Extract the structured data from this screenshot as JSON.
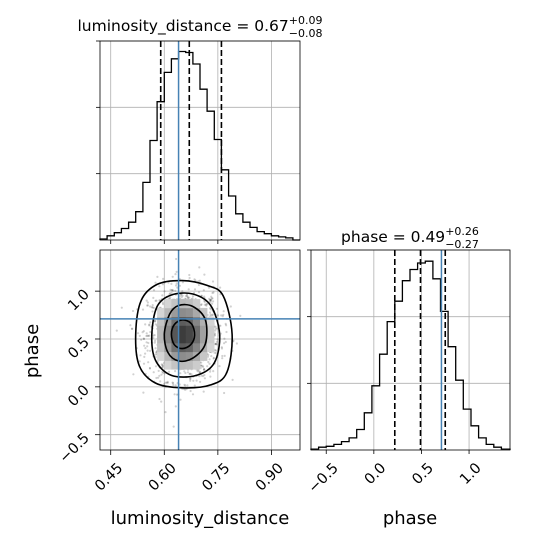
{
  "chart_data": {
    "type": "corner",
    "parameters": [
      {
        "name": "luminosity_distance",
        "median": 0.67,
        "q_lo": 0.59,
        "q_hi": 0.76,
        "title_main": "luminosity_distance = 0.67",
        "title_sup": "+0.09",
        "title_sub": "−0.08",
        "truth": 0.64,
        "range": [
          0.42,
          0.98
        ],
        "ticks": [
          0.45,
          0.6,
          0.75,
          0.9
        ],
        "tick_labels": [
          "0.45",
          "0.60",
          "0.75",
          "0.90"
        ],
        "axis_label": "luminosity_distance",
        "hist": {
          "edges": [
            0.42,
            0.44,
            0.46,
            0.48,
            0.5,
            0.52,
            0.54,
            0.56,
            0.58,
            0.6,
            0.62,
            0.64,
            0.66,
            0.68,
            0.7,
            0.72,
            0.74,
            0.76,
            0.78,
            0.8,
            0.82,
            0.84,
            0.86,
            0.88,
            0.9,
            0.92,
            0.94,
            0.96,
            0.98
          ],
          "counts": [
            1,
            4,
            7,
            11,
            17,
            27,
            55,
            95,
            132,
            160,
            173,
            180,
            179,
            168,
            144,
            123,
            96,
            67,
            42,
            25,
            17,
            12,
            8,
            6,
            4,
            3,
            2,
            0
          ],
          "max": 190
        }
      },
      {
        "name": "phase",
        "median": 0.49,
        "q_lo": 0.22,
        "q_hi": 0.75,
        "title_main": "phase = 0.49",
        "title_sup": "+0.26",
        "title_sub": "−0.27",
        "truth": 0.71,
        "range": [
          -0.66,
          1.43
        ],
        "ticks": [
          -0.5,
          0.0,
          0.5,
          1.0
        ],
        "tick_labels": [
          "−0.5",
          "0.0",
          "0.5",
          "1.0"
        ],
        "axis_label": "phase",
        "hist": {
          "edges": [
            -0.66,
            -0.58,
            -0.5,
            -0.42,
            -0.34,
            -0.26,
            -0.18,
            -0.1,
            -0.02,
            0.06,
            0.14,
            0.22,
            0.3,
            0.38,
            0.46,
            0.54,
            0.62,
            0.7,
            0.78,
            0.86,
            0.94,
            1.02,
            1.1,
            1.18,
            1.26,
            1.34,
            1.43
          ],
          "counts": [
            1,
            3,
            4,
            6,
            9,
            13,
            22,
            40,
            69,
            103,
            138,
            160,
            182,
            194,
            201,
            203,
            184,
            149,
            111,
            75,
            44,
            26,
            13,
            6,
            3,
            1
          ],
          "max": 215
        }
      }
    ],
    "joint": {
      "x": "luminosity_distance",
      "y": "phase",
      "center": [
        0.655,
        0.55
      ],
      "spread": [
        0.05,
        0.24
      ],
      "contour_levels": [
        "39.3%",
        "86.5%",
        "98.9%"
      ],
      "contours": [
        [
          [
            0.6,
            0.55
          ],
          [
            0.615,
            0.76
          ],
          [
            0.64,
            0.85
          ],
          [
            0.68,
            0.84
          ],
          [
            0.715,
            0.7
          ],
          [
            0.715,
            0.45
          ],
          [
            0.68,
            0.3
          ],
          [
            0.64,
            0.27
          ],
          [
            0.61,
            0.36
          ]
        ],
        [
          [
            0.565,
            0.55
          ],
          [
            0.58,
            0.84
          ],
          [
            0.62,
            0.96
          ],
          [
            0.68,
            0.97
          ],
          [
            0.73,
            0.85
          ],
          [
            0.755,
            0.55
          ],
          [
            0.74,
            0.25
          ],
          [
            0.69,
            0.12
          ],
          [
            0.62,
            0.12
          ],
          [
            0.575,
            0.28
          ]
        ],
        [
          [
            0.52,
            0.55
          ],
          [
            0.535,
            0.9
          ],
          [
            0.58,
            1.07
          ],
          [
            0.65,
            1.11
          ],
          [
            0.72,
            1.06
          ],
          [
            0.765,
            0.95
          ],
          [
            0.79,
            0.55
          ],
          [
            0.775,
            0.15
          ],
          [
            0.73,
            0.02
          ],
          [
            0.65,
            -0.01
          ],
          [
            0.575,
            0.04
          ],
          [
            0.53,
            0.22
          ]
        ],
        [
          [
            0.62,
            0.55
          ],
          [
            0.628,
            0.65
          ],
          [
            0.65,
            0.7
          ],
          [
            0.676,
            0.66
          ],
          [
            0.685,
            0.54
          ],
          [
            0.674,
            0.44
          ],
          [
            0.65,
            0.4
          ],
          [
            0.628,
            0.44
          ]
        ]
      ],
      "truth": [
        0.64,
        0.71
      ]
    }
  }
}
